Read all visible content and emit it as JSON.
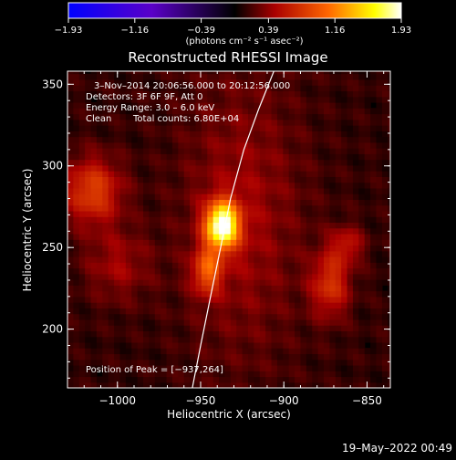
{
  "chart_data": {
    "type": "heatmap",
    "title": "Reconstructed RHESSI Image",
    "xlabel": "Heliocentric X (arcsec)",
    "ylabel": "Heliocentric Y (arcsec)",
    "xlim": [
      -1030,
      -836
    ],
    "ylim": [
      164,
      358
    ],
    "xticks": [
      -1000,
      -950,
      -900,
      -850
    ],
    "xtick_labels": [
      "−1000",
      "−950",
      "−900",
      "−850"
    ],
    "yticks": [
      200,
      250,
      300,
      350
    ],
    "ytick_labels": [
      "200",
      "250",
      "300",
      "350"
    ],
    "colorbar": {
      "ticks": [
        -1.93,
        -1.16,
        -0.39,
        0.39,
        1.16,
        1.93
      ],
      "tick_labels": [
        "−1.93",
        "−1.16",
        "−0.39",
        "0.39",
        "1.16",
        "1.93"
      ],
      "unit_label": "(photons cm⁻² s⁻¹ asec⁻²)",
      "range": [
        -1.93,
        1.93
      ],
      "colormap": [
        "#0000ff",
        "#5a00c8",
        "#000000",
        "#aa0000",
        "#ff6600",
        "#ffff00",
        "#ffffff"
      ]
    },
    "annotations": {
      "time_range": "3–Nov–2014 20:06:56.000 to 20:12:56.000",
      "detectors": "Detectors: 3F 6F 9F, Att 0",
      "energy_range": "Energy Range: 3.0 – 6.0 keV",
      "method": "Clean",
      "total_counts": "Total counts: 6.80E+04",
      "peak_position": "Position of Peak = [−937,264]"
    },
    "peak": {
      "x": -937,
      "y": 264,
      "value": 1.93
    },
    "sources": [
      {
        "x": -937,
        "y": 264,
        "amplitude": 1.75,
        "sx": 7,
        "sy": 10
      },
      {
        "x": -946,
        "y": 236,
        "amplitude": 0.75,
        "sx": 6,
        "sy": 10
      },
      {
        "x": -1015,
        "y": 285,
        "amplitude": 0.7,
        "sx": 12,
        "sy": 14
      },
      {
        "x": -1000,
        "y": 240,
        "amplitude": 0.3,
        "sx": 14,
        "sy": 16
      },
      {
        "x": -872,
        "y": 228,
        "amplitude": 0.6,
        "sx": 8,
        "sy": 14
      },
      {
        "x": -862,
        "y": 252,
        "amplitude": 0.4,
        "sx": 7,
        "sy": 8
      },
      {
        "x": -925,
        "y": 270,
        "amplitude": 0.3,
        "sx": 25,
        "sy": 60
      }
    ],
    "limb_curve": [
      [
        -955,
        164
      ],
      [
        -950,
        190
      ],
      [
        -944,
        220
      ],
      [
        -938,
        250
      ],
      [
        -932,
        280
      ],
      [
        -924,
        310
      ],
      [
        -915,
        335
      ],
      [
        -906,
        358
      ]
    ],
    "background_level": 0.22,
    "grid": false
  },
  "footer": {
    "date": "19–May–2022 00:49"
  }
}
